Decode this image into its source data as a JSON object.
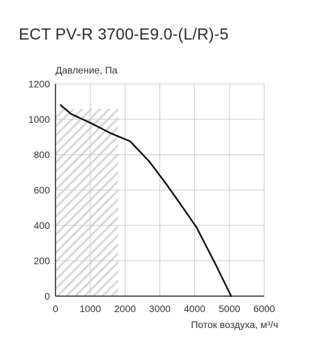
{
  "title": "ECT PV-R 3700-E9.0-(L/R)-5",
  "chart_data": {
    "type": "line",
    "title": "ECT PV-R 3700-E9.0-(L/R)-5",
    "ylabel": "Давление, Па",
    "xlabel": "Поток воздуха, м³/ч",
    "xlim": [
      0,
      6000
    ],
    "ylim": [
      0,
      1200
    ],
    "x_ticks": [
      0,
      1000,
      2000,
      3000,
      4000,
      5000,
      6000
    ],
    "y_ticks": [
      0,
      200,
      400,
      600,
      800,
      1000,
      1200
    ],
    "x_tick_labels": [
      "0",
      "1000",
      "2000",
      "3000",
      "4000",
      "5000",
      "6000"
    ],
    "y_tick_labels": [
      "0",
      "200",
      "400",
      "600",
      "800",
      "1000",
      "1200"
    ],
    "grid": true,
    "hatched_region": {
      "x": [
        0,
        1800
      ],
      "y": [
        0,
        1060
      ]
    },
    "series": [
      {
        "x": [
          150,
          450,
          1000,
          1600,
          2150,
          2700,
          3200,
          3700,
          4050,
          4600,
          5050
        ],
        "y": [
          1080,
          1030,
          980,
          920,
          875,
          760,
          630,
          490,
          390,
          180,
          0
        ]
      }
    ],
    "colors": {
      "line": "#111111",
      "grid": "#c8c8c8",
      "hatch": "#d8d8d8"
    }
  }
}
